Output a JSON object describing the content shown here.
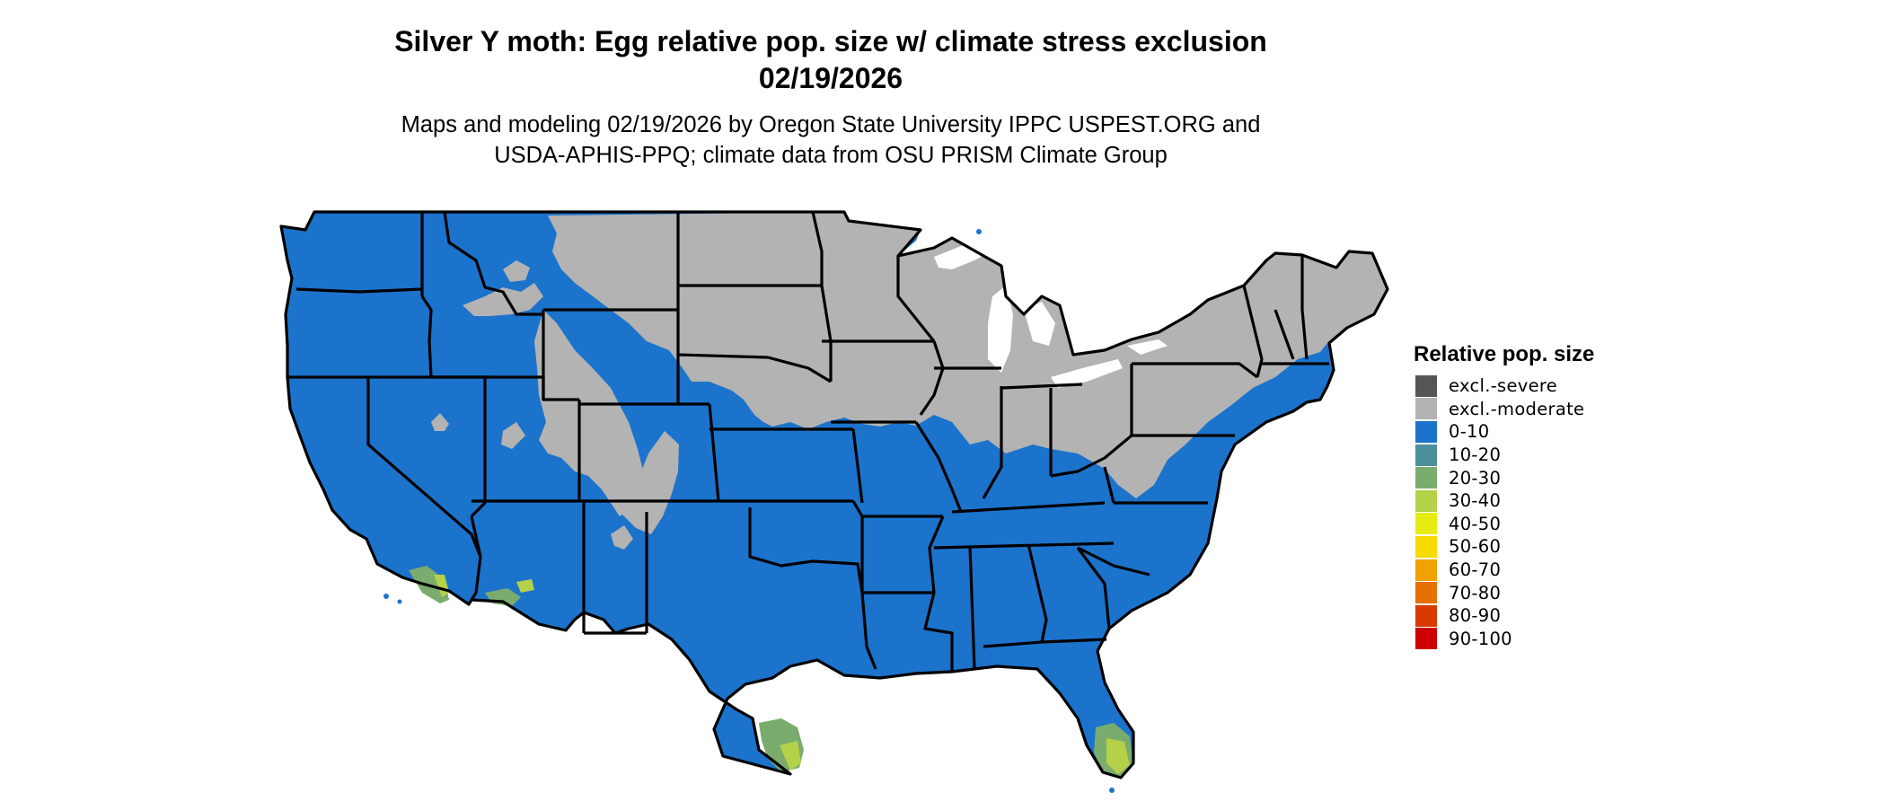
{
  "title_line1": "Silver Y moth: Egg relative pop. size w/ climate stress exclusion",
  "title_line2": "02/19/2026",
  "subtitle_line1": "Maps and modeling 02/19/2026 by Oregon State University IPPC USPEST.ORG and",
  "subtitle_line2": "USDA-APHIS-PPQ; climate data from OSU PRISM Climate Group",
  "legend": {
    "title": "Relative pop. size",
    "items": [
      {
        "label": "excl.-severe",
        "color": "#555555"
      },
      {
        "label": "excl.-moderate",
        "color": "#b3b3b3"
      },
      {
        "label": "0-10",
        "color": "#1b73cc"
      },
      {
        "label": "10-20",
        "color": "#4a8f9a"
      },
      {
        "label": "20-30",
        "color": "#7aac6e"
      },
      {
        "label": "30-40",
        "color": "#b4d147"
      },
      {
        "label": "40-50",
        "color": "#e6ec12"
      },
      {
        "label": "50-60",
        "color": "#f7db00"
      },
      {
        "label": "60-70",
        "color": "#f0a300"
      },
      {
        "label": "70-80",
        "color": "#e56f00"
      },
      {
        "label": "80-90",
        "color": "#d93a00"
      },
      {
        "label": "90-100",
        "color": "#cc0000"
      }
    ]
  }
}
